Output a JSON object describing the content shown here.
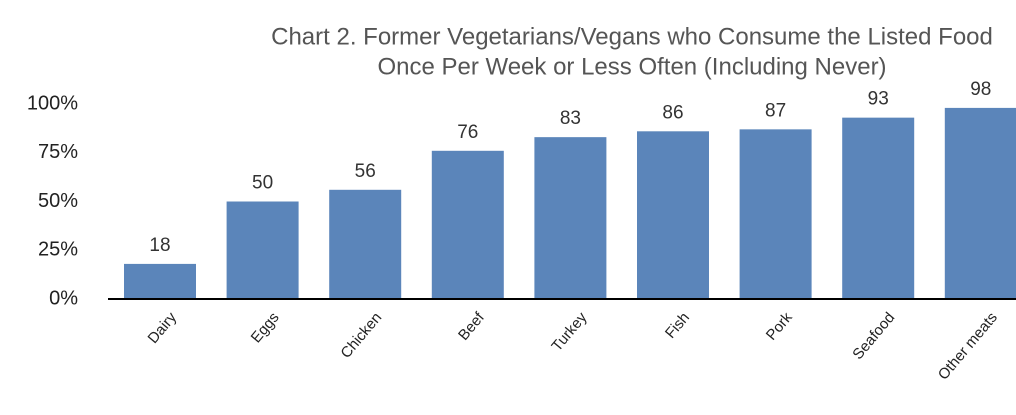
{
  "chart_data": {
    "type": "bar",
    "title": [
      "Chart 2. Former Vegetarians/Vegans who Consume the Listed Food",
      "Once Per Week or Less Often (Including Never)"
    ],
    "categories": [
      "Dairy",
      "Eggs",
      "Chicken",
      "Beef",
      "Turkey",
      "Fish",
      "Pork",
      "Seafood",
      "Other meats"
    ],
    "values": [
      18,
      50,
      56,
      76,
      83,
      86,
      87,
      93,
      98
    ],
    "color": "#5b85ba",
    "ylim": [
      0,
      100
    ],
    "yticks": [
      {
        "value": 0,
        "label": "0%"
      },
      {
        "value": 25,
        "label": "25%"
      },
      {
        "value": 50,
        "label": "50%"
      },
      {
        "value": 75,
        "label": "75%"
      },
      {
        "value": 100,
        "label": "100%"
      }
    ],
    "grid": false
  }
}
